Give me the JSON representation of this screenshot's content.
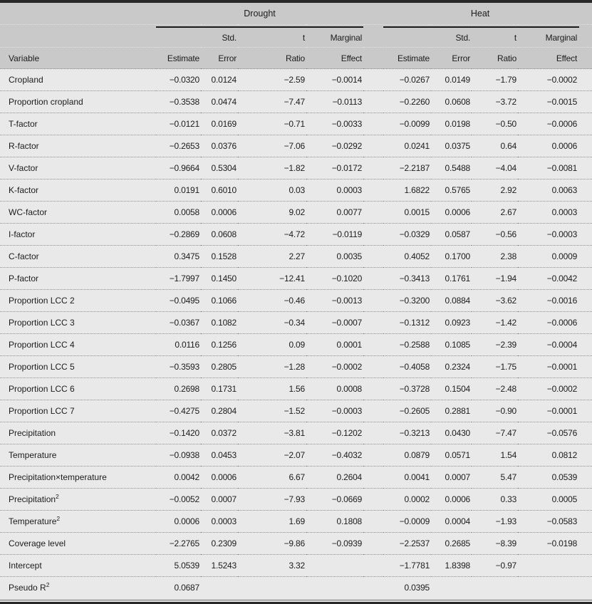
{
  "colors": {
    "header_bg": "#c9c9c9",
    "body_bg": "#e9e9e9",
    "frame_rule": "#282828",
    "row_separator": "#8f8f8f",
    "text": "#1c1c1c"
  },
  "header": {
    "variable_label": "Variable",
    "groups": [
      {
        "label": "Drought"
      },
      {
        "label": "Heat"
      }
    ],
    "col_top": [
      "",
      "Std.",
      "t",
      "Marginal"
    ],
    "col_bottom": [
      "Estimate",
      "Error",
      "Ratio",
      "Effect"
    ]
  },
  "table": {
    "rows": [
      {
        "variable": "Cropland",
        "sup": "",
        "drought": [
          "−0.0320",
          "0.0124",
          "−2.59",
          "−0.0014"
        ],
        "heat": [
          "−0.0267",
          "0.0149",
          "−1.79",
          "−0.0002"
        ]
      },
      {
        "variable": "Proportion cropland",
        "sup": "",
        "drought": [
          "−0.3538",
          "0.0474",
          "−7.47",
          "−0.0113"
        ],
        "heat": [
          "−0.2260",
          "0.0608",
          "−3.72",
          "−0.0015"
        ]
      },
      {
        "variable": "T-factor",
        "sup": "",
        "drought": [
          "−0.0121",
          "0.0169",
          "−0.71",
          "−0.0033"
        ],
        "heat": [
          "−0.0099",
          "0.0198",
          "−0.50",
          "−0.0006"
        ]
      },
      {
        "variable": "R-factor",
        "sup": "",
        "drought": [
          "−0.2653",
          "0.0376",
          "−7.06",
          "−0.0292"
        ],
        "heat": [
          "0.0241",
          "0.0375",
          "0.64",
          "0.0006"
        ]
      },
      {
        "variable": "V-factor",
        "sup": "",
        "drought": [
          "−0.9664",
          "0.5304",
          "−1.82",
          "−0.0172"
        ],
        "heat": [
          "−2.2187",
          "0.5488",
          "−4.04",
          "−0.0081"
        ]
      },
      {
        "variable": "K-factor",
        "sup": "",
        "drought": [
          "0.0191",
          "0.6010",
          "0.03",
          "0.0003"
        ],
        "heat": [
          "1.6822",
          "0.5765",
          "2.92",
          "0.0063"
        ]
      },
      {
        "variable": "WC-factor",
        "sup": "",
        "drought": [
          "0.0058",
          "0.0006",
          "9.02",
          "0.0077"
        ],
        "heat": [
          "0.0015",
          "0.0006",
          "2.67",
          "0.0003"
        ]
      },
      {
        "variable": "I-factor",
        "sup": "",
        "drought": [
          "−0.2869",
          "0.0608",
          "−4.72",
          "−0.0119"
        ],
        "heat": [
          "−0.0329",
          "0.0587",
          "−0.56",
          "−0.0003"
        ]
      },
      {
        "variable": "C-factor",
        "sup": "",
        "drought": [
          "0.3475",
          "0.1528",
          "2.27",
          "0.0035"
        ],
        "heat": [
          "0.4052",
          "0.1700",
          "2.38",
          "0.0009"
        ]
      },
      {
        "variable": "P-factor",
        "sup": "",
        "drought": [
          "−1.7997",
          "0.1450",
          "−12.41",
          "−0.1020"
        ],
        "heat": [
          "−0.3413",
          "0.1761",
          "−1.94",
          "−0.0042"
        ]
      },
      {
        "variable": "Proportion LCC 2",
        "sup": "",
        "drought": [
          "−0.0495",
          "0.1066",
          "−0.46",
          "−0.0013"
        ],
        "heat": [
          "−0.3200",
          "0.0884",
          "−3.62",
          "−0.0016"
        ]
      },
      {
        "variable": "Proportion LCC 3",
        "sup": "",
        "drought": [
          "−0.0367",
          "0.1082",
          "−0.34",
          "−0.0007"
        ],
        "heat": [
          "−0.1312",
          "0.0923",
          "−1.42",
          "−0.0006"
        ]
      },
      {
        "variable": "Proportion LCC 4",
        "sup": "",
        "drought": [
          "0.0116",
          "0.1256",
          "0.09",
          "0.0001"
        ],
        "heat": [
          "−0.2588",
          "0.1085",
          "−2.39",
          "−0.0004"
        ]
      },
      {
        "variable": "Proportion LCC 5",
        "sup": "",
        "drought": [
          "−0.3593",
          "0.2805",
          "−1.28",
          "−0.0002"
        ],
        "heat": [
          "−0.4058",
          "0.2324",
          "−1.75",
          "−0.0001"
        ]
      },
      {
        "variable": "Proportion LCC 6",
        "sup": "",
        "drought": [
          "0.2698",
          "0.1731",
          "1.56",
          "0.0008"
        ],
        "heat": [
          "−0.3728",
          "0.1504",
          "−2.48",
          "−0.0002"
        ]
      },
      {
        "variable": "Proportion LCC 7",
        "sup": "",
        "drought": [
          "−0.4275",
          "0.2804",
          "−1.52",
          "−0.0003"
        ],
        "heat": [
          "−0.2605",
          "0.2881",
          "−0.90",
          "−0.0001"
        ]
      },
      {
        "variable": "Precipitation",
        "sup": "",
        "drought": [
          "−0.1420",
          "0.0372",
          "−3.81",
          "−0.1202"
        ],
        "heat": [
          "−0.3213",
          "0.0430",
          "−7.47",
          "−0.0576"
        ]
      },
      {
        "variable": "Temperature",
        "sup": "",
        "drought": [
          "−0.0938",
          "0.0453",
          "−2.07",
          "−0.4032"
        ],
        "heat": [
          "0.0879",
          "0.0571",
          "1.54",
          "0.0812"
        ]
      },
      {
        "variable": "Precipitation×temperature",
        "sup": "",
        "drought": [
          "0.0042",
          "0.0006",
          "6.67",
          "0.2604"
        ],
        "heat": [
          "0.0041",
          "0.0007",
          "5.47",
          "0.0539"
        ]
      },
      {
        "variable": "Precipitation",
        "sup": "2",
        "drought": [
          "−0.0052",
          "0.0007",
          "−7.93",
          "−0.0669"
        ],
        "heat": [
          "0.0002",
          "0.0006",
          "0.33",
          "0.0005"
        ]
      },
      {
        "variable": "Temperature",
        "sup": "2",
        "drought": [
          "0.0006",
          "0.0003",
          "1.69",
          "0.1808"
        ],
        "heat": [
          "−0.0009",
          "0.0004",
          "−1.93",
          "−0.0583"
        ]
      },
      {
        "variable": "Coverage level",
        "sup": "",
        "drought": [
          "−2.2765",
          "0.2309",
          "−9.86",
          "−0.0939"
        ],
        "heat": [
          "−2.2537",
          "0.2685",
          "−8.39",
          "−0.0198"
        ]
      },
      {
        "variable": "Intercept",
        "sup": "",
        "drought": [
          "5.0539",
          "1.5243",
          "3.32",
          ""
        ],
        "heat": [
          "−1.7781",
          "1.8398",
          "−0.97",
          ""
        ]
      },
      {
        "variable": "Pseudo R",
        "sup": "2",
        "drought": [
          "0.0687",
          "",
          "",
          ""
        ],
        "heat": [
          "0.0395",
          "",
          "",
          ""
        ]
      }
    ]
  }
}
